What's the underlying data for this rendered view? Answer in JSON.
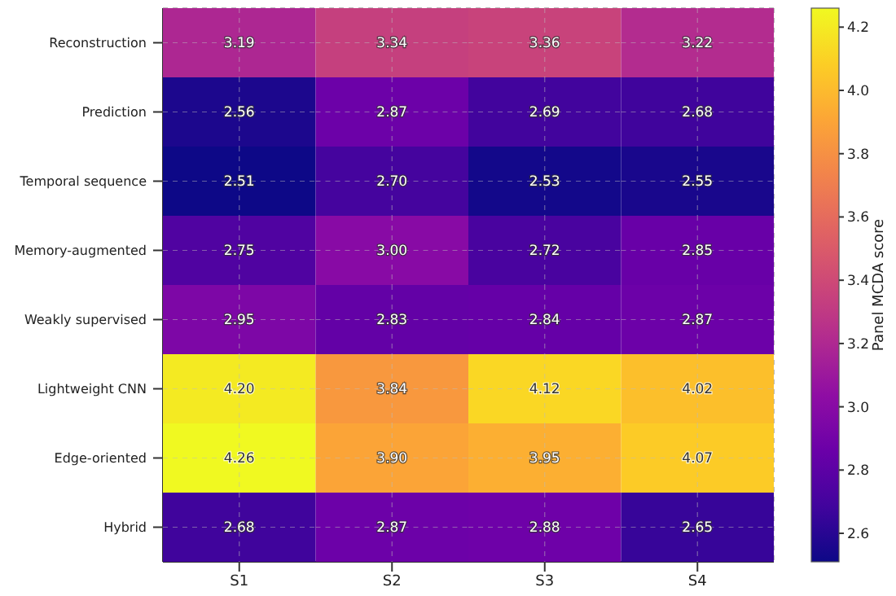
{
  "chart_data": {
    "type": "heatmap",
    "categories": [
      "S1",
      "S2",
      "S3",
      "S4"
    ],
    "y_categories": [
      "Reconstruction",
      "Prediction",
      "Temporal sequence",
      "Memory-augmented",
      "Weakly supervised",
      "Lightweight CNN",
      "Edge-oriented",
      "Hybrid"
    ],
    "cells": [
      [
        3.19,
        3.34,
        3.36,
        3.22
      ],
      [
        2.56,
        2.87,
        2.69,
        2.68
      ],
      [
        2.51,
        2.7,
        2.53,
        2.55
      ],
      [
        2.75,
        3.0,
        2.72,
        2.85
      ],
      [
        2.95,
        2.83,
        2.84,
        2.87
      ],
      [
        4.2,
        3.84,
        4.12,
        4.02
      ],
      [
        4.26,
        3.9,
        3.95,
        4.07
      ],
      [
        2.68,
        2.87,
        2.88,
        2.65
      ]
    ],
    "cell_labels": [
      [
        "3.19",
        "3.34",
        "3.36",
        "3.22"
      ],
      [
        "2.56",
        "2.87",
        "2.69",
        "2.68"
      ],
      [
        "2.51",
        "2.70",
        "2.53",
        "2.55"
      ],
      [
        "2.75",
        "3.00",
        "2.72",
        "2.85"
      ],
      [
        "2.95",
        "2.83",
        "2.84",
        "2.87"
      ],
      [
        "4.20",
        "3.84",
        "4.12",
        "4.02"
      ],
      [
        "4.26",
        "3.90",
        "3.95",
        "4.07"
      ],
      [
        "2.68",
        "2.87",
        "2.88",
        "2.65"
      ]
    ],
    "clim": [
      2.51,
      4.26
    ],
    "cticks": [
      {
        "value": 2.6,
        "label": "2.6"
      },
      {
        "value": 2.8,
        "label": "2.8"
      },
      {
        "value": 3,
        "label": "3.0"
      },
      {
        "value": 3.2,
        "label": "3.2"
      },
      {
        "value": 3.4,
        "label": "3.4"
      },
      {
        "value": 3.6,
        "label": "3.6"
      },
      {
        "value": 3.8,
        "label": "3.8"
      },
      {
        "value": 4,
        "label": "4.0"
      },
      {
        "value": 4.2,
        "label": "4.2"
      }
    ],
    "clabel": "Panel MCDA score",
    "data_labels": true,
    "grid": true
  }
}
